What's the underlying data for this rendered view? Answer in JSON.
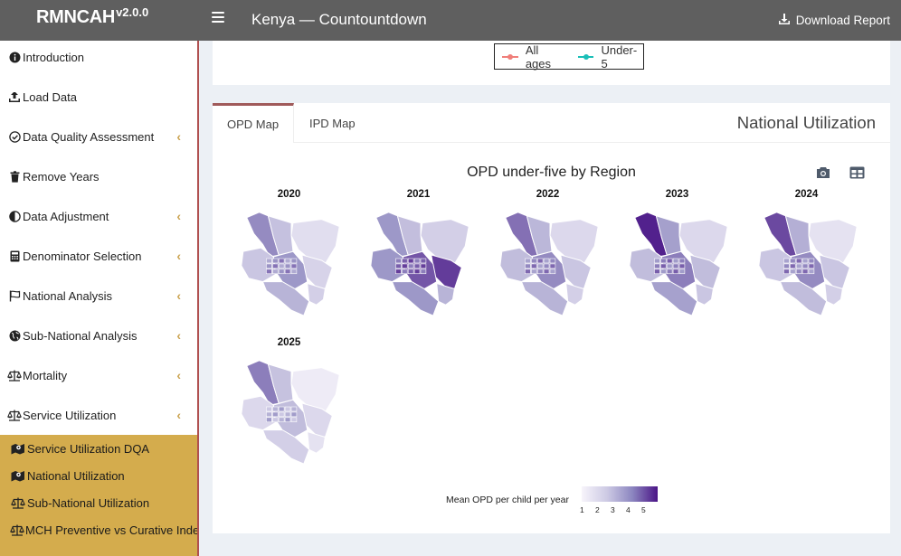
{
  "app": {
    "name": "RMNCAH",
    "version": "v2.0.0",
    "title": "Kenya — Countountdown",
    "download_label": "Download Report"
  },
  "sidebar": {
    "items": [
      {
        "label": "Introduction",
        "icon": "info-circle-icon",
        "chevron": false
      },
      {
        "label": "Load Data",
        "icon": "upload-icon",
        "chevron": false
      },
      {
        "label": "Data Quality Assessment",
        "icon": "check-circle-icon",
        "chevron": true
      },
      {
        "label": "Remove Years",
        "icon": "trash-icon",
        "chevron": false
      },
      {
        "label": "Data Adjustment",
        "icon": "adjust-icon",
        "chevron": true
      },
      {
        "label": "Denominator Selection",
        "icon": "calculator-icon",
        "chevron": true
      },
      {
        "label": "National Analysis",
        "icon": "flag-icon",
        "chevron": true
      },
      {
        "label": "Sub-National Analysis",
        "icon": "globe-icon",
        "chevron": true
      },
      {
        "label": "Mortality",
        "icon": "scale-icon",
        "chevron": true
      },
      {
        "label": "Service Utilization",
        "icon": "scale-icon",
        "chevron": true
      }
    ],
    "subitems": [
      {
        "label": "Service Utilization DQA",
        "icon": "map-icon"
      },
      {
        "label": "National Utilization",
        "icon": "map-icon"
      },
      {
        "label": "Sub-National Utilization",
        "icon": "scale-icon"
      },
      {
        "label": "MCH Preventive vs Curative Inde",
        "icon": "scale-icon"
      }
    ]
  },
  "legend": {
    "items": [
      {
        "label": "All ages",
        "color": "#f07f7a"
      },
      {
        "label": "Under-5",
        "color": "#1bbfb8"
      }
    ]
  },
  "panel": {
    "tabs": [
      {
        "label": "OPD Map"
      },
      {
        "label": "IPD Map"
      }
    ],
    "title": "National Utilization"
  },
  "chart": {
    "title": "OPD under-five by Region",
    "colorbar": {
      "label": "Mean OPD per child per year",
      "ticks": [
        "1",
        "2",
        "3",
        "4",
        "5"
      ],
      "low_color": "#f7f4fb",
      "high_color": "#4a1486"
    },
    "facets": [
      {
        "year": "2020",
        "nw": 0.55,
        "ne": 0.12,
        "east": 0.18,
        "center": 0.5,
        "south": 0.35,
        "west": 0.25,
        "coast": 0.2
      },
      {
        "year": "2021",
        "nw": 0.5,
        "ne": 0.2,
        "east": 0.85,
        "center": 0.75,
        "south": 0.5,
        "west": 0.5,
        "coast": 0.35
      },
      {
        "year": "2022",
        "nw": 0.65,
        "ne": 0.15,
        "east": 0.25,
        "center": 0.55,
        "south": 0.35,
        "west": 0.3,
        "coast": 0.2
      },
      {
        "year": "2023",
        "nw": 0.95,
        "ne": 0.15,
        "east": 0.3,
        "center": 0.6,
        "south": 0.45,
        "west": 0.3,
        "coast": 0.25
      },
      {
        "year": "2024",
        "nw": 0.8,
        "ne": 0.1,
        "east": 0.25,
        "center": 0.55,
        "south": 0.3,
        "west": 0.25,
        "coast": 0.2
      },
      {
        "year": "2025",
        "nw": 0.6,
        "ne": 0.05,
        "east": 0.15,
        "center": 0.3,
        "south": 0.2,
        "west": 0.15,
        "coast": 0.1
      }
    ]
  }
}
